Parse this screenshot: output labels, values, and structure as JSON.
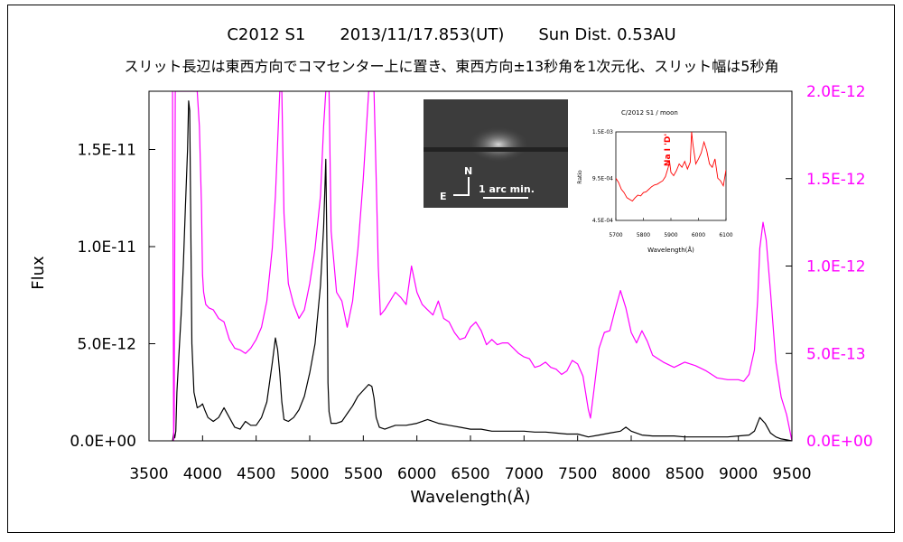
{
  "chart_data": {
    "type": "line",
    "title_parts": [
      "C2012 S1",
      "2013/11/17.853(UT)",
      "Sun Dist. 0.53AU"
    ],
    "subtitle": "スリット長辺は東西方向でコマセンター上に置き、東西方向±13秒角を1次元化、スリット幅は5秒角",
    "xlabel": "Wavelength(Å)",
    "ylabel": "Flux",
    "xlim": [
      3500,
      9500
    ],
    "ylim": [
      0,
      1.8e-11
    ],
    "ylim_right": [
      0,
      2e-12
    ],
    "x_ticks": [
      "3500",
      "4000",
      "4500",
      "5000",
      "5500",
      "6000",
      "6500",
      "7000",
      "7500",
      "8000",
      "8500",
      "9000",
      "9500"
    ],
    "y_ticks_left": [
      {
        "value": 0,
        "label": "0.0E+00"
      },
      {
        "value": 5e-12,
        "label": "5.0E-12"
      },
      {
        "value": 1e-11,
        "label": "1.0E-11"
      },
      {
        "value": 1.5e-11,
        "label": "1.5E-11"
      }
    ],
    "y_ticks_right": [
      {
        "value": 0,
        "label": "0.0E+00"
      },
      {
        "value": 5e-13,
        "label": "5.0E-13"
      },
      {
        "value": 1e-12,
        "label": "1.0E-12"
      },
      {
        "value": 1.5e-12,
        "label": "1.5E-12"
      },
      {
        "value": 2e-12,
        "label": "2.0E-12"
      }
    ],
    "series": [
      {
        "axis": "left",
        "color": "#000000",
        "x": [
          3720,
          3730,
          3740,
          3750,
          3760,
          3780,
          3800,
          3820,
          3840,
          3860,
          3870,
          3880,
          3890,
          3900,
          3920,
          3950,
          3980,
          4000,
          4020,
          4050,
          4100,
          4150,
          4200,
          4250,
          4300,
          4350,
          4400,
          4450,
          4500,
          4550,
          4600,
          4650,
          4680,
          4700,
          4720,
          4740,
          4760,
          4800,
          4850,
          4900,
          4950,
          5000,
          5050,
          5100,
          5130,
          5150,
          5165,
          5170,
          5180,
          5200,
          5250,
          5300,
          5350,
          5400,
          5450,
          5500,
          5550,
          5580,
          5600,
          5620,
          5650,
          5700,
          5800,
          5900,
          6000,
          6100,
          6200,
          6300,
          6400,
          6500,
          6600,
          6700,
          6800,
          6900,
          7000,
          7100,
          7200,
          7300,
          7400,
          7500,
          7600,
          7700,
          7800,
          7900,
          7950,
          8000,
          8100,
          8200,
          8300,
          8400,
          8500,
          8600,
          8700,
          8800,
          8900,
          9000,
          9100,
          9150,
          9200,
          9250,
          9300,
          9350,
          9400,
          9450,
          9500
        ],
        "y": [
          0,
          4e-13,
          1.5e-13,
          5e-13,
          2.5e-12,
          4.5e-12,
          6.5e-12,
          9e-12,
          1.2e-11,
          1.5e-11,
          1.75e-11,
          1.7e-11,
          1.1e-11,
          5e-12,
          2.5e-12,
          1.7e-12,
          1.8e-12,
          1.9e-12,
          1.6e-12,
          1.2e-12,
          1e-12,
          1.2e-12,
          1.7e-12,
          1.2e-12,
          7e-13,
          6e-13,
          1e-12,
          8e-13,
          8e-13,
          1.2e-12,
          2e-12,
          4e-12,
          5.3e-12,
          4.7e-12,
          3.5e-12,
          2e-12,
          1.1e-12,
          1e-12,
          1.2e-12,
          1.6e-12,
          2.3e-12,
          3.5e-12,
          5e-12,
          8e-12,
          1.1e-11,
          1.45e-11,
          8e-12,
          3e-12,
          1.5e-12,
          9e-13,
          9e-13,
          1e-12,
          1.4e-12,
          1.8e-12,
          2.3e-12,
          2.6e-12,
          2.9e-12,
          2.8e-12,
          2.2e-12,
          1.2e-12,
          7e-13,
          6e-13,
          8e-13,
          8e-13,
          9e-13,
          1.1e-12,
          9e-13,
          8e-13,
          7e-13,
          6e-13,
          6e-13,
          5e-13,
          5e-13,
          5e-13,
          5e-13,
          4.5e-13,
          4.5e-13,
          4e-13,
          3.5e-13,
          3.5e-13,
          2e-13,
          3e-13,
          4e-13,
          5e-13,
          7e-13,
          5e-13,
          3e-13,
          2.5e-13,
          2.5e-13,
          2.5e-13,
          2e-13,
          2e-13,
          2e-13,
          2e-13,
          2e-13,
          2.5e-13,
          3e-13,
          5e-13,
          1.2e-12,
          9e-13,
          4e-13,
          2e-13,
          1e-13,
          5e-14,
          0
        ]
      },
      {
        "axis": "right",
        "color": "#ff00ff",
        "x": [
          3720,
          3725,
          3730,
          3735,
          3745,
          3760,
          3780,
          3800,
          3820,
          3840,
          3860,
          3880,
          3900,
          3920,
          3950,
          3970,
          3990,
          4000,
          4010,
          4030,
          4060,
          4100,
          4150,
          4200,
          4250,
          4300,
          4350,
          4400,
          4450,
          4500,
          4550,
          4600,
          4650,
          4680,
          4700,
          4720,
          4740,
          4760,
          4800,
          4850,
          4900,
          4950,
          5000,
          5050,
          5100,
          5130,
          5150,
          5170,
          5180,
          5200,
          5250,
          5300,
          5350,
          5400,
          5450,
          5500,
          5550,
          5600,
          5620,
          5640,
          5660,
          5700,
          5750,
          5800,
          5850,
          5900,
          5950,
          6000,
          6050,
          6100,
          6150,
          6200,
          6250,
          6300,
          6350,
          6400,
          6450,
          6500,
          6550,
          6600,
          6650,
          6700,
          6750,
          6800,
          6850,
          6900,
          6950,
          7000,
          7050,
          7100,
          7150,
          7200,
          7250,
          7300,
          7350,
          7400,
          7450,
          7500,
          7550,
          7600,
          7620,
          7650,
          7700,
          7750,
          7800,
          7850,
          7900,
          7950,
          8000,
          8050,
          8100,
          8150,
          8200,
          8300,
          8400,
          8500,
          8600,
          8700,
          8800,
          8900,
          9000,
          9050,
          9100,
          9150,
          9180,
          9200,
          9230,
          9260,
          9300,
          9350,
          9400,
          9450,
          9500
        ],
        "y": [
          2e-12,
          1e-12,
          0,
          1.5e-13,
          2e-12,
          2e-12,
          2e-12,
          2e-12,
          2e-12,
          2e-12,
          2e-12,
          2e-12,
          2e-12,
          2e-12,
          2e-12,
          1.8e-12,
          1.35e-12,
          9.5e-13,
          8.5e-13,
          7.8e-13,
          7.6e-13,
          7.5e-13,
          7e-13,
          6.8e-13,
          5.8e-13,
          5.3e-13,
          5.2e-13,
          5e-13,
          5.3e-13,
          5.8e-13,
          6.5e-13,
          8e-13,
          1.1e-12,
          1.4e-12,
          1.7e-12,
          2e-12,
          2e-12,
          1.3e-12,
          9e-13,
          7.8e-13,
          7e-13,
          7.5e-13,
          9e-13,
          1.1e-12,
          1.4e-12,
          1.8e-12,
          2e-12,
          2e-12,
          2e-12,
          1.2e-12,
          8.5e-13,
          8e-13,
          6.5e-13,
          8e-13,
          1.1e-12,
          1.5e-12,
          2e-12,
          2e-12,
          1.5e-12,
          1e-12,
          7.2e-13,
          7.5e-13,
          8e-13,
          8.5e-13,
          8.2e-13,
          7.8e-13,
          1e-12,
          8.5e-13,
          7.8e-13,
          7.5e-13,
          7.2e-13,
          8e-13,
          7e-13,
          6.8e-13,
          6.2e-13,
          5.8e-13,
          5.9e-13,
          6.5e-13,
          6.8e-13,
          6.3e-13,
          5.5e-13,
          5.8e-13,
          5.5e-13,
          5.6e-13,
          5.6e-13,
          5.3e-13,
          5e-13,
          4.8e-13,
          4.7e-13,
          4.2e-13,
          4.3e-13,
          4.5e-13,
          4.2e-13,
          4.1e-13,
          3.8e-13,
          4e-13,
          4.6e-13,
          4.4e-13,
          3.7e-13,
          1.8e-13,
          1.3e-13,
          2.8e-13,
          5.3e-13,
          6.2e-13,
          6.3e-13,
          7.5e-13,
          8.6e-13,
          7.6e-13,
          6.2e-13,
          5.6e-13,
          6.3e-13,
          5.7e-13,
          4.9e-13,
          4.5e-13,
          4.2e-13,
          4.5e-13,
          4.3e-13,
          4e-13,
          3.6e-13,
          3.5e-13,
          3.5e-13,
          3.4e-13,
          3.8e-13,
          5.2e-13,
          8e-13,
          1.1e-12,
          1.25e-12,
          1.15e-12,
          8.5e-13,
          4.5e-13,
          2.5e-13,
          1.5e-13,
          0
        ]
      }
    ]
  },
  "inset_image": {
    "label_n": "N",
    "label_e": "E",
    "scale_label": "1 arc min."
  },
  "inset_chart": {
    "type": "line",
    "title": "C/2012 S1 / moon",
    "ylabel": "Ratio",
    "xlabel": "Wavelength(Å)",
    "annotation": "Na I 'D'",
    "x_ticks": [
      "5700",
      "5800",
      "5900",
      "6000",
      "6100"
    ],
    "y_ticks": [
      "1.5E-03",
      "9.5E-04",
      "4.5E-04"
    ],
    "xlim": [
      5700,
      6100
    ],
    "ylim": [
      0.00045,
      0.0015
    ],
    "color": "#ff0000",
    "x": [
      5700,
      5710,
      5720,
      5730,
      5740,
      5750,
      5760,
      5770,
      5780,
      5790,
      5800,
      5810,
      5820,
      5830,
      5840,
      5850,
      5860,
      5870,
      5880,
      5890,
      5895,
      5900,
      5910,
      5920,
      5930,
      5940,
      5950,
      5960,
      5970,
      5975,
      5980,
      5990,
      6000,
      6010,
      6020,
      6030,
      6040,
      6050,
      6060,
      6070,
      6080,
      6090,
      6100
    ],
    "y": [
      0.00095,
      0.0009,
      0.00082,
      0.00078,
      0.00072,
      0.0007,
      0.00068,
      0.00072,
      0.00075,
      0.00074,
      0.00078,
      0.00079,
      0.00082,
      0.00085,
      0.00087,
      0.00088,
      0.0009,
      0.00092,
      0.00097,
      0.00108,
      0.00115,
      0.00102,
      0.00098,
      0.00104,
      0.00112,
      0.00108,
      0.00115,
      0.00106,
      0.00114,
      0.0015,
      0.00135,
      0.00112,
      0.00118,
      0.00125,
      0.00138,
      0.00128,
      0.00112,
      0.00108,
      0.00118,
      0.00095,
      0.00092,
      0.00086,
      0.00105
    ]
  }
}
